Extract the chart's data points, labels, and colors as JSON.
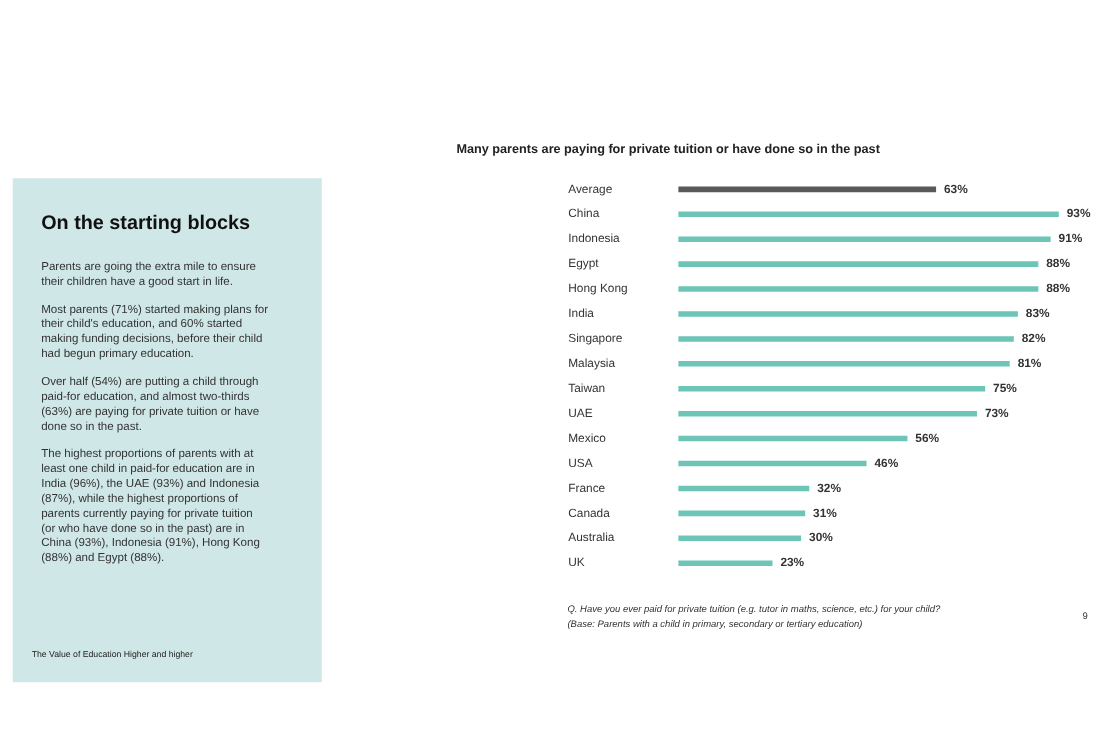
{
  "chart_data": {
    "type": "bar",
    "orientation": "horizontal",
    "title": "Many parents are paying for private tuition or have done so in the past",
    "categories": [
      "Average",
      "China",
      "Indonesia",
      "Egypt",
      "Hong Kong",
      "India",
      "Singapore",
      "Malaysia",
      "Taiwan",
      "UAE",
      "Mexico",
      "USA",
      "France",
      "Canada",
      "Australia",
      "UK"
    ],
    "values": [
      63,
      93,
      91,
      88,
      88,
      83,
      82,
      81,
      75,
      73,
      56,
      46,
      32,
      31,
      30,
      23
    ],
    "value_labels": [
      "63%",
      "93%",
      "91%",
      "88%",
      "88%",
      "83%",
      "82%",
      "81%",
      "75%",
      "73%",
      "56%",
      "46%",
      "32%",
      "31%",
      "30%",
      "23%"
    ],
    "colors": [
      "#595959",
      "#6cc5b6",
      "#6cc5b6",
      "#6cc5b6",
      "#6cc5b6",
      "#6cc5b6",
      "#6cc5b6",
      "#6cc5b6",
      "#6cc5b6",
      "#6cc5b6",
      "#6cc5b6",
      "#6cc5b6",
      "#6cc5b6",
      "#6cc5b6",
      "#6cc5b6",
      "#6cc5b6"
    ],
    "tick_labels": false,
    "annotations": [
      "On the starting blocks",
      "Parents are going the extra mile to ensure their children have a good start in life.",
      "Most parents (71%) started making plans for their child's education, and 60% started making funding decisions, before their child had begun primary education.",
      "Over half (54%) are putting a child through paid-for education, and almost two-thirds (63%) are paying for private tuition or have done so in the past.",
      "The highest proportions of parents with at least one child in paid-for education are in India (96%), the UAE (93%) and Indonesia (87%), while the highest proportions of parents currently paying for private tuition (or who have done so in the past) are in China (93%), Indonesia (91%), Hong Kong (88%) and Egypt (88%).",
      "The Value of Education Higher and higher",
      "Q. Have you ever paid for private tuition (e.g. tutor in maths, science, etc.) for your child?",
      "(Base: Parents with a child in primary, secondary or tertiary education)",
      "9"
    ]
  }
}
